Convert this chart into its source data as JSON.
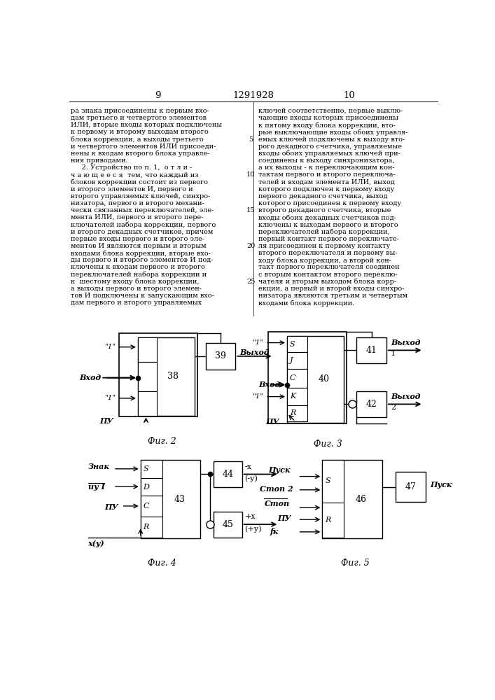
{
  "page_width": 7.07,
  "page_height": 10.0,
  "bg_color": "#ffffff",
  "text_color": "#000000",
  "col_left_text": [
    "ра знака присоединены к первым вхо-",
    "дам третьего и четвертого элементов",
    "ИЛИ, вторые входы которых подключены",
    "к первому и второму выходам второго",
    "блока коррекции, а выходы третьего",
    "и четвертого элементов ИЛИ присоеди-",
    "нены к входам второго блока управле-",
    "ния приводами.",
    "     2. Устройство по п. 1,  о т л и -",
    "ч а ю щ е е с я  тем, что каждый из",
    "блоков коррекции состоит из первого",
    "и второго элементов И, первого и",
    "второго управляемых ключей, синхро-",
    "низатора, первого и второго механи-",
    "чески связанных переключателей, эле-",
    "мента ИЛИ, первого и второго пере-",
    "ключателей набора коррекции, первого",
    "и второго декадных счетчиков, причем",
    "первые входы первого и второго эле-",
    "ментов И являются первым и вторым",
    "входами блока коррекции, вторые вхо-",
    "ды первого и второго элементов И под-",
    "ключены к входам первого и второго",
    "переключателей набора коррекции и",
    "к  шестому входу блока коррекции,",
    "а выходы первого и второго элемен-",
    "тов И подключены к запускающим вхо-",
    "дам первого и второго управляемых"
  ],
  "col_right_text": [
    "ключей соответственно, первые выклю-",
    "чающие входы которых присоединены",
    "к пятому входу блока коррекции, вто-",
    "рые выключающие входы обоих управля-",
    "емых ключей подключены к выходу вто-",
    "рого декадного счетчика, управляемые",
    "входы обоих управляемых ключей при-",
    "соединены к выходу синхронизатора,",
    "а их выходы - к переключающим кон-",
    "тактам первого и второго переключа-",
    "телей и входам элемента ИЛИ, выход",
    "которого подключен к первому входу",
    "первого декадного счетчика, выход",
    "которого присоединен к первому входу",
    "второго декадного счетчика, вторые",
    "входы обоих декадных счетчиков под-",
    "ключены к выходам первого и второго",
    "переключателей набора коррекции,",
    "первый контакт первого переключате-",
    "ля присоединен к первому контакту",
    "второго переключателя и первому вы-",
    "ходу блока коррекции, а второй кон-",
    "такт первого переключателя соединен",
    "с вторым контактом второго переклю-",
    "чателя и вторым выходом блока корр-",
    "екции, а первый и второй входы синхро-",
    "низатора являются третьим и четвертым",
    "входами блока коррекции."
  ],
  "fig2_caption": "Фиг. 2",
  "fig3_caption": "Фиг. 3",
  "fig4_caption": "Фиг. 4",
  "fig5_caption": "Фиг. 5"
}
